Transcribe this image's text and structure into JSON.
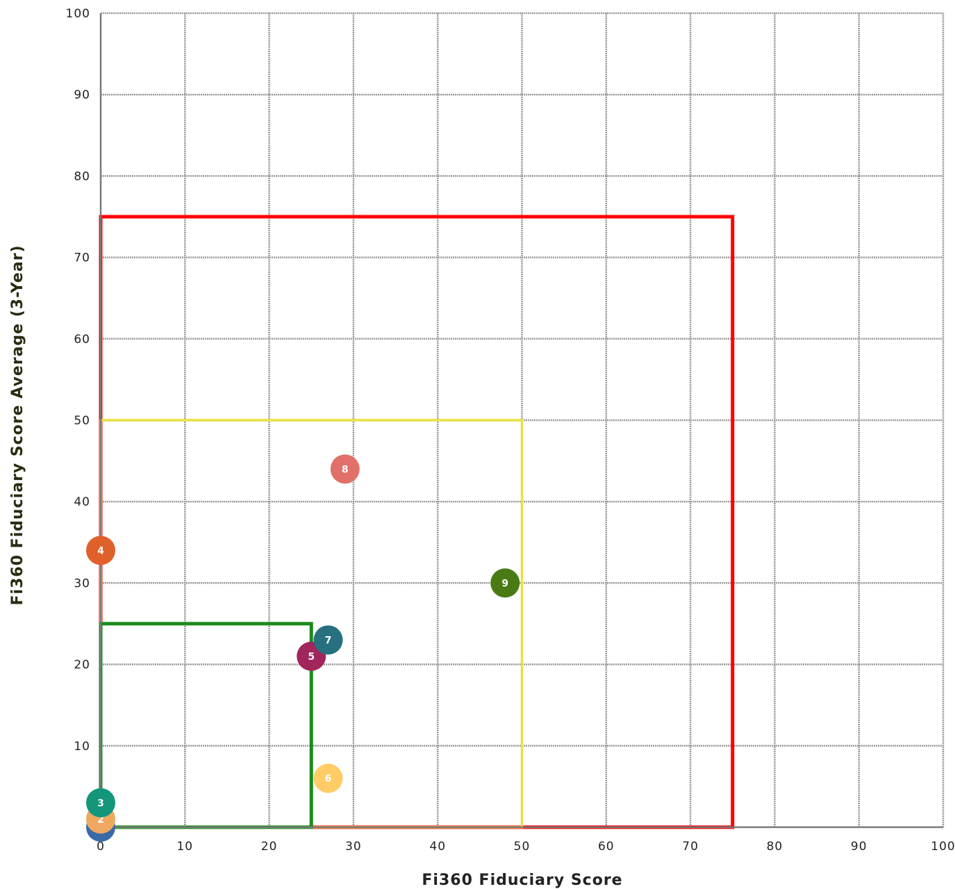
{
  "chart_data": {
    "type": "scatter",
    "xlabel": "Fi360 Fiduciary Score",
    "ylabel": "Fi360 Fiduciary Score Average (3-Year)",
    "xlim": [
      0,
      100
    ],
    "ylim": [
      0,
      100
    ],
    "x_ticks": [
      "0",
      "10",
      "20",
      "30",
      "40",
      "50",
      "60",
      "70",
      "80",
      "90",
      "100"
    ],
    "y_ticks": [
      "10",
      "20",
      "30",
      "40",
      "50",
      "60",
      "70",
      "80",
      "90",
      "100"
    ],
    "grid": true,
    "regions": [
      {
        "color": "#ff0000",
        "x": [
          0,
          75
        ],
        "y": [
          0,
          75
        ]
      },
      {
        "color": "#e8e040",
        "x": [
          0,
          50
        ],
        "y": [
          0,
          50
        ]
      },
      {
        "color": "#1a8a1a",
        "x": [
          0,
          25
        ],
        "y": [
          0,
          25
        ]
      }
    ],
    "points": [
      {
        "label": "1",
        "x": 0,
        "y": 0,
        "color": "#3a6aa8"
      },
      {
        "label": "2",
        "x": 0,
        "y": 1,
        "color": "#f0a860"
      },
      {
        "label": "3",
        "x": 0,
        "y": 3,
        "color": "#14967a"
      },
      {
        "label": "4",
        "x": 0,
        "y": 34,
        "color": "#e0602a"
      },
      {
        "label": "5",
        "x": 25,
        "y": 21,
        "color": "#a0265c"
      },
      {
        "label": "6",
        "x": 27,
        "y": 6,
        "color": "#ffcc66"
      },
      {
        "label": "7",
        "x": 27,
        "y": 23,
        "color": "#267080"
      },
      {
        "label": "8",
        "x": 29,
        "y": 44,
        "color": "#e07068"
      },
      {
        "label": "9",
        "x": 48,
        "y": 30,
        "color": "#4a7a14"
      }
    ]
  }
}
